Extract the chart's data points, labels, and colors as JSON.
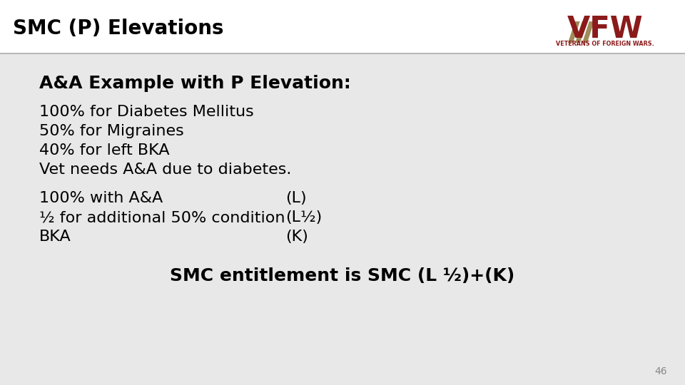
{
  "title": "SMC (P) Elevations",
  "bg_color": "#e8e8e8",
  "header_bg": "#ffffff",
  "title_color": "#000000",
  "title_fontsize": 20,
  "header_line_color": "#aaaaaa",
  "subtitle": "A&A Example with P Elevation:",
  "subtitle_fontsize": 18,
  "body_lines_1": [
    "100% for Diabetes Mellitus",
    "50% for Migraines",
    "40% for left BKA",
    "Vet needs A&A due to diabetes."
  ],
  "body_lines_2_left": [
    "100% with A&A",
    "½ for additional 50% condition",
    "BKA"
  ],
  "body_lines_2_right": [
    "(L)",
    "(L½)",
    "(K)"
  ],
  "conclusion": "SMC entitlement is SMC (L ½)+(K)",
  "page_number": "46",
  "body_fontsize": 16,
  "conclusion_fontsize": 18,
  "vfw_dark_red": "#8b1a1a",
  "vfw_gold": "#9e8c5a"
}
